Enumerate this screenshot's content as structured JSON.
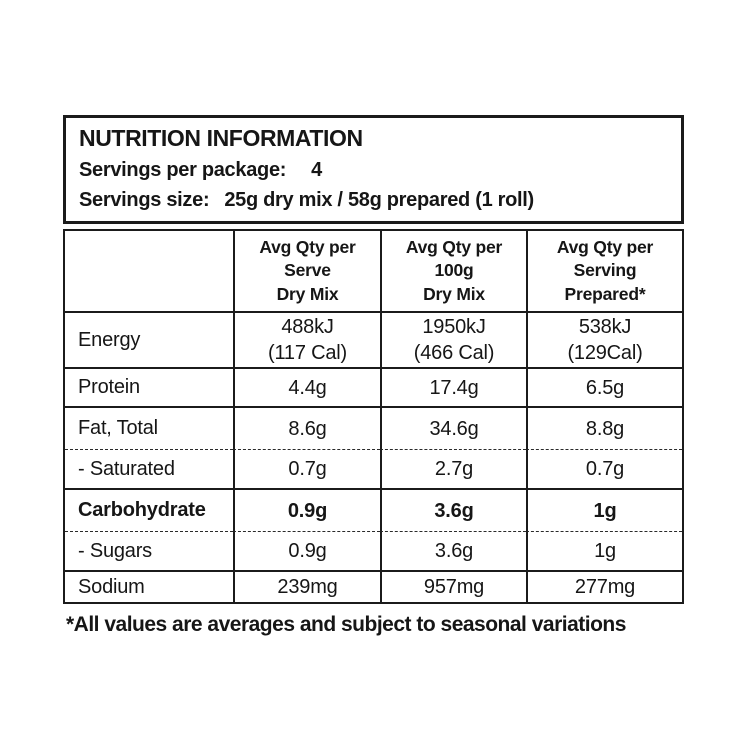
{
  "colors": {
    "background": "#ffffff",
    "text": "#161616",
    "border": "#1b1b1b"
  },
  "header": {
    "title": "NUTRITION INFORMATION",
    "servings_per_package": {
      "label": "Servings per package:",
      "value": "4"
    },
    "serving_size": {
      "label": "Servings size:",
      "value": "25g dry mix / 58g prepared (1 roll)"
    }
  },
  "table": {
    "column_headers": [
      "Avg Qty per\nServe\nDry Mix",
      "Avg Qty per\n100g\nDry Mix",
      "Avg Qty per\nServing\nPrepared*"
    ],
    "rows": [
      {
        "label": "Energy",
        "values": [
          "488kJ\n(117 Cal)",
          "1950kJ\n(466 Cal)",
          "538kJ\n(129Cal)"
        ]
      },
      {
        "label": "Protein",
        "values": [
          "4.4g",
          "17.4g",
          "6.5g"
        ]
      },
      {
        "label": "Fat, Total",
        "values": [
          "8.6g",
          "34.6g",
          "8.8g"
        ]
      },
      {
        "label": "- Saturated",
        "values": [
          "0.7g",
          "2.7g",
          "0.7g"
        ]
      },
      {
        "label": "Carbohydrate",
        "values": [
          "0.9g",
          "3.6g",
          "1g"
        ]
      },
      {
        "label": "- Sugars",
        "values": [
          "0.9g",
          "3.6g",
          "1g"
        ]
      },
      {
        "label": "Sodium",
        "values": [
          "239mg",
          "957mg",
          "277mg"
        ]
      }
    ]
  },
  "footnote": "*All values are averages and subject to seasonal variations"
}
